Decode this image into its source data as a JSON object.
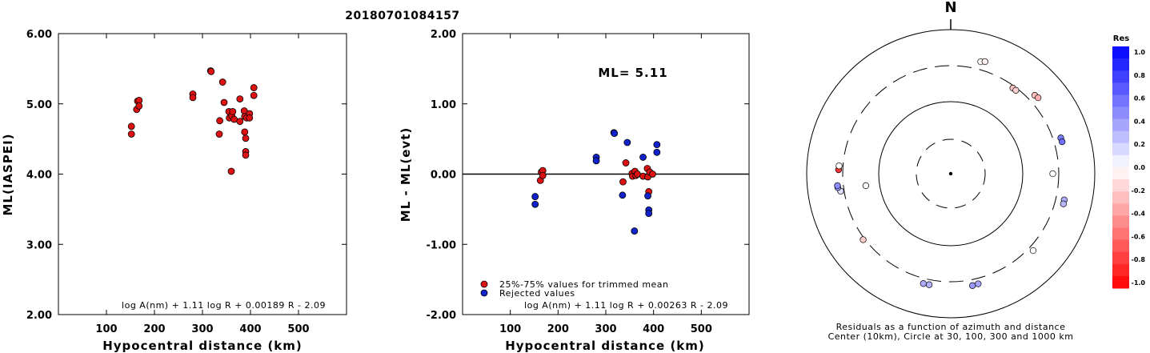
{
  "title": "20180701084157",
  "chart_data": [
    {
      "type": "scatter",
      "ylabel": "ML(IASPEI)",
      "xlabel": "Hypocentral distance (km)",
      "xlim": [
        0,
        600
      ],
      "ylim": [
        2.0,
        6.0
      ],
      "xticks": [
        "100",
        "200",
        "300",
        "400",
        "500"
      ],
      "yticks": [
        "2.00",
        "3.00",
        "4.00",
        "5.00",
        "6.00"
      ],
      "formula": "log A(nm) + 1.11 log R + 0.00189 R - 2.09",
      "points": [
        [
          152,
          4.68
        ],
        [
          152,
          4.57
        ],
        [
          163,
          4.92
        ],
        [
          165,
          5.04
        ],
        [
          168,
          5.05
        ],
        [
          168,
          4.97
        ],
        [
          280,
          5.14
        ],
        [
          280,
          5.09
        ],
        [
          317,
          5.47
        ],
        [
          318,
          5.46
        ],
        [
          336,
          4.76
        ],
        [
          335,
          4.57
        ],
        [
          342,
          5.31
        ],
        [
          345,
          5.02
        ],
        [
          355,
          4.89
        ],
        [
          356,
          4.8
        ],
        [
          360,
          4.04
        ],
        [
          361,
          4.83
        ],
        [
          363,
          4.89
        ],
        [
          366,
          4.78
        ],
        [
          378,
          5.07
        ],
        [
          378,
          4.75
        ],
        [
          387,
          4.9
        ],
        [
          388,
          4.82
        ],
        [
          388,
          4.6
        ],
        [
          390,
          4.51
        ],
        [
          390,
          4.32
        ],
        [
          390,
          4.27
        ],
        [
          392,
          4.8
        ],
        [
          398,
          4.86
        ],
        [
          398,
          4.8
        ],
        [
          407,
          5.23
        ],
        [
          407,
          5.12
        ]
      ]
    },
    {
      "type": "scatter",
      "ylabel": "ML - ML(evt)",
      "xlabel": "Hypocentral distance (km)",
      "xlim": [
        0,
        600
      ],
      "ylim": [
        -2.0,
        2.0
      ],
      "xticks": [
        "100",
        "200",
        "300",
        "400",
        "500"
      ],
      "yticks": [
        "-2.00",
        "-1.00",
        "0.00",
        "1.00",
        "2.00"
      ],
      "annotation": "ML= 5.11",
      "formula": "log A(nm) + 1.11 log R + 0.00263 R - 2.09",
      "legend": [
        "25%-75% values for trimmed mean",
        "Rejected values"
      ],
      "series": [
        {
          "name": "25%-75% values for trimmed mean",
          "color": "#dd1111",
          "points": [
            [
              163,
              -0.09
            ],
            [
              165,
              0.03
            ],
            [
              168,
              0.05
            ],
            [
              168,
              -0.02
            ],
            [
              336,
              -0.11
            ],
            [
              342,
              0.16
            ],
            [
              355,
              0.01
            ],
            [
              356,
              -0.03
            ],
            [
              361,
              0.04
            ],
            [
              363,
              -0.02
            ],
            [
              366,
              0.0
            ],
            [
              378,
              -0.03
            ],
            [
              387,
              0.08
            ],
            [
              388,
              -0.04
            ],
            [
              390,
              -0.25
            ],
            [
              392,
              0.03
            ],
            [
              398,
              0.0
            ]
          ]
        },
        {
          "name": "Rejected values",
          "color": "#1122cc",
          "points": [
            [
              152,
              -0.32
            ],
            [
              152,
              -0.43
            ],
            [
              280,
              0.24
            ],
            [
              280,
              0.19
            ],
            [
              317,
              0.59
            ],
            [
              318,
              0.58
            ],
            [
              335,
              -0.3
            ],
            [
              345,
              0.45
            ],
            [
              360,
              -0.81
            ],
            [
              378,
              0.24
            ],
            [
              388,
              -0.31
            ],
            [
              390,
              -0.51
            ],
            [
              390,
              -0.56
            ],
            [
              407,
              0.42
            ],
            [
              407,
              0.31
            ]
          ]
        }
      ]
    },
    {
      "type": "scatter",
      "subtype": "polar",
      "north_label": "N",
      "caption": [
        "Residuals as a function of azimuth and distance",
        "Center (10km), Circle at 30, 100, 300 and 1000 km"
      ],
      "colorbar": {
        "title": "Res",
        "ticks": [
          "1.0",
          "0.8",
          "0.6",
          "0.4",
          "0.2",
          "0.0",
          "-0.2",
          "-0.4",
          "-0.6",
          "-0.8",
          "-1.0"
        ],
        "max_color": "#0000ff",
        "zero_color": "#ffffff",
        "min_color": "#ff0000"
      },
      "points": [
        {
          "az": 15,
          "dist": 390,
          "res": -0.02
        },
        {
          "az": 17,
          "dist": 407,
          "res": -0.05
        },
        {
          "az": 36,
          "dist": 280,
          "res": -0.24
        },
        {
          "az": 38,
          "dist": 280,
          "res": -0.19
        },
        {
          "az": 47,
          "dist": 378,
          "res": -0.24
        },
        {
          "az": 49,
          "dist": 388,
          "res": -0.31
        },
        {
          "az": 72,
          "dist": 388,
          "res": 0.51
        },
        {
          "az": 74,
          "dist": 390,
          "res": 0.56
        },
        {
          "az": 90,
          "dist": 250,
          "res": 0.0
        },
        {
          "az": 103,
          "dist": 398,
          "res": 0.32
        },
        {
          "az": 105,
          "dist": 400,
          "res": 0.28
        },
        {
          "az": 133,
          "dist": 350,
          "res": 0.0
        },
        {
          "az": 166,
          "dist": 360,
          "res": 0.35
        },
        {
          "az": 169,
          "dist": 366,
          "res": 0.4
        },
        {
          "az": 191,
          "dist": 355,
          "res": 0.3
        },
        {
          "az": 194,
          "dist": 356,
          "res": 0.32
        },
        {
          "az": 233,
          "dist": 317,
          "res": -0.2
        },
        {
          "az": 262,
          "dist": 152,
          "res": 0.0
        },
        {
          "az": 261,
          "dist": 336,
          "res": 0.12
        },
        {
          "az": 263,
          "dist": 363,
          "res": 0.4
        },
        {
          "az": 264,
          "dist": 365,
          "res": 0.45
        },
        {
          "az": 272,
          "dist": 345,
          "res": -0.8
        },
        {
          "az": 274,
          "dist": 342,
          "res": 0.0
        }
      ]
    }
  ]
}
